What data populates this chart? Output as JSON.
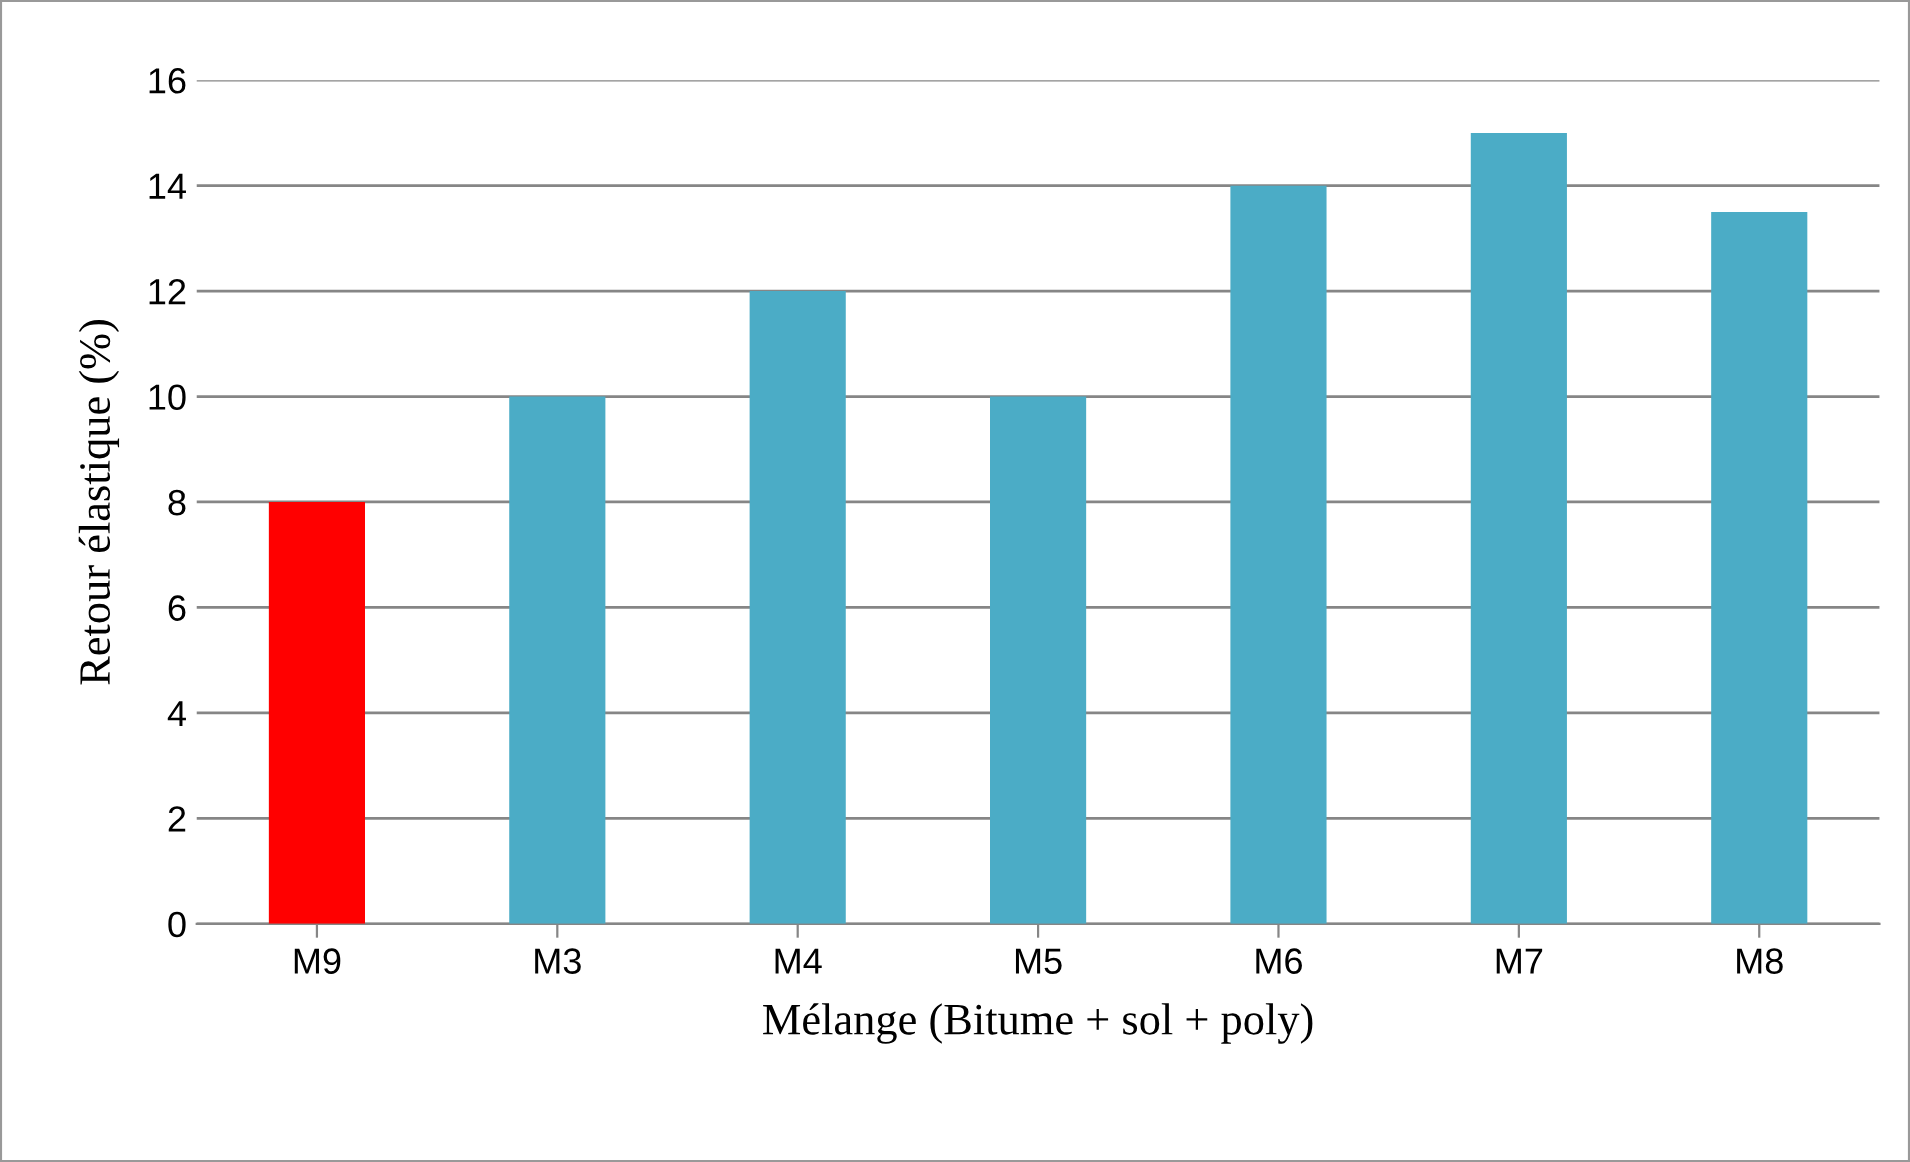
{
  "chart_data": {
    "type": "bar",
    "xlabel": "Mélange (Bitume + sol + poly)",
    "ylabel": "Retour élastique (%)",
    "categories": [
      "M9",
      "M3",
      "M4",
      "M5",
      "M6",
      "M7",
      "M8"
    ],
    "values": [
      8,
      10,
      12,
      10,
      14,
      15,
      13.5
    ],
    "colors": [
      "#ff0000",
      "#4bacc6",
      "#4bacc6",
      "#4bacc6",
      "#4bacc6",
      "#4bacc6",
      "#4bacc6"
    ],
    "ylim": [
      0,
      16
    ],
    "yticks": [
      0,
      2,
      4,
      6,
      8,
      10,
      12,
      14,
      16
    ],
    "grid": "y",
    "legend": false
  }
}
